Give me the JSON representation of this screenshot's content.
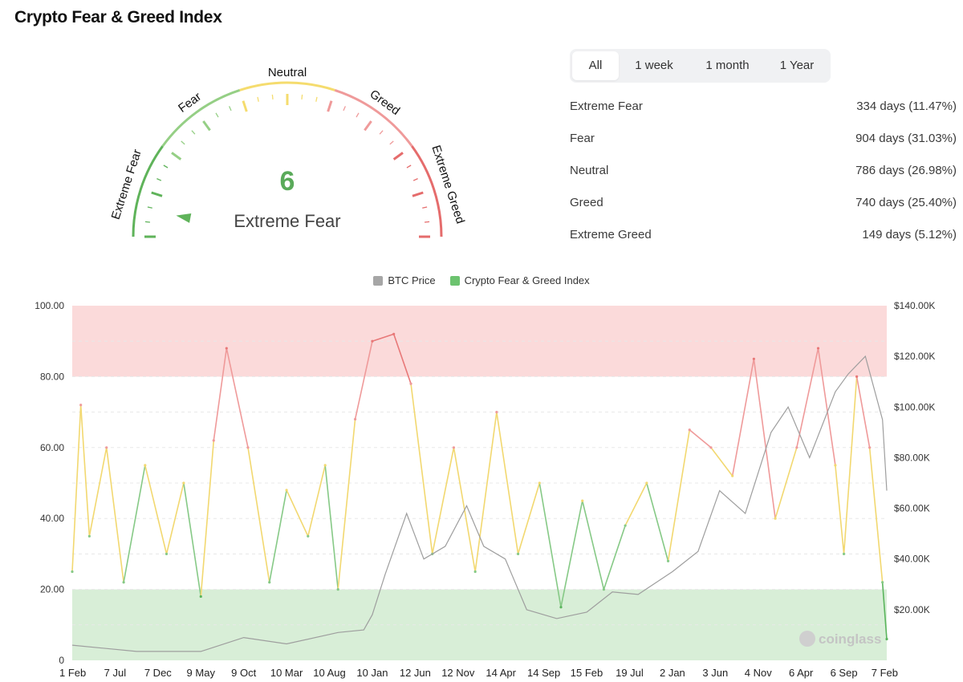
{
  "header": {
    "title": "Crypto Fear & Greed Index"
  },
  "gauge": {
    "value": 6,
    "value_text": "6",
    "label": "Extreme Fear",
    "min": 0,
    "max": 100,
    "zone_labels": [
      "Extreme Fear",
      "Fear",
      "Neutral",
      "Greed",
      "Extreme Greed"
    ],
    "zone_colors": [
      "#5fb35a",
      "#95cf85",
      "#f5dc6e",
      "#ef9a9a",
      "#e56c6c"
    ]
  },
  "tabs": [
    {
      "label": "All",
      "active": true
    },
    {
      "label": "1 week",
      "active": false
    },
    {
      "label": "1 month",
      "active": false
    },
    {
      "label": "1 Year",
      "active": false
    }
  ],
  "stats": [
    {
      "label": "Extreme Fear",
      "value": "334 days (11.47%)"
    },
    {
      "label": "Fear",
      "value": "904 days (31.03%)"
    },
    {
      "label": "Neutral",
      "value": "786 days (26.98%)"
    },
    {
      "label": "Greed",
      "value": "740 days (25.40%)"
    },
    {
      "label": "Extreme Greed",
      "value": "149 days (5.12%)"
    }
  ],
  "watermark": "coinglass",
  "chart_data": {
    "type": "line",
    "legend": [
      {
        "name": "BTC Price",
        "color": "#a6a6a6"
      },
      {
        "name": "Crypto Fear & Greed Index",
        "color": "#6cc36f"
      }
    ],
    "legend_position": "top-center",
    "x_ticks": [
      "1 Feb",
      "7 Jul",
      "7 Dec",
      "9 May",
      "9 Oct",
      "10 Mar",
      "10 Aug",
      "10 Jan",
      "12 Jun",
      "12 Nov",
      "14 Apr",
      "14 Sep",
      "15 Feb",
      "19 Jul",
      "2 Jan",
      "3 Jun",
      "4 Nov",
      "6 Apr",
      "6 Sep",
      "7 Feb"
    ],
    "y_left": {
      "ticks": [
        "0",
        "20.00",
        "40.00",
        "60.00",
        "80.00",
        "100.00"
      ],
      "range": [
        0,
        100
      ]
    },
    "y_right": {
      "ticks": [
        "$20.00K",
        "$40.00K",
        "$60.00K",
        "$80.00K",
        "$100.00K",
        "$120.00K",
        "$140.00K"
      ],
      "range": [
        0,
        140000
      ]
    },
    "bands": [
      {
        "from": 0,
        "to": 20,
        "color": "#d8eed7"
      },
      {
        "from": 80,
        "to": 100,
        "color": "#fbdada"
      }
    ],
    "line_colors": {
      "extreme_fear": "#5bb55d",
      "fear": "#86c986",
      "neutral": "#f2d870",
      "greed": "#ef9a9a",
      "extreme_greed": "#e87878"
    },
    "grid": true,
    "series": [
      {
        "name": "Crypto Fear & Greed Index",
        "x": [
          0,
          0.2,
          0.4,
          0.8,
          1.2,
          1.7,
          2.2,
          2.6,
          3.0,
          3.3,
          3.6,
          4.1,
          4.6,
          5.0,
          5.5,
          5.9,
          6.2,
          6.6,
          7.0,
          7.5,
          7.9,
          8.4,
          8.9,
          9.4,
          9.9,
          10.4,
          10.9,
          11.4,
          11.9,
          12.4,
          12.9,
          13.4,
          13.9,
          14.4,
          14.9,
          15.4,
          15.9,
          16.4,
          16.9,
          17.4,
          17.8,
          18.0,
          18.3,
          18.6,
          18.9,
          19.0
        ],
        "y": [
          25,
          72,
          35,
          60,
          22,
          55,
          30,
          50,
          18,
          62,
          88,
          60,
          22,
          48,
          35,
          55,
          20,
          68,
          90,
          92,
          78,
          30,
          60,
          25,
          70,
          30,
          50,
          15,
          45,
          20,
          38,
          50,
          28,
          65,
          60,
          52,
          85,
          40,
          60,
          88,
          55,
          30,
          80,
          60,
          22,
          6
        ]
      },
      {
        "name": "BTC Price",
        "x": [
          0,
          1.5,
          3.0,
          4.0,
          5.0,
          6.2,
          6.8,
          7.0,
          7.3,
          7.8,
          8.2,
          8.7,
          9.2,
          9.6,
          10.1,
          10.6,
          11.3,
          12.0,
          12.6,
          13.2,
          14.0,
          14.6,
          15.1,
          15.7,
          16.3,
          16.7,
          17.2,
          17.8,
          18.1,
          18.5,
          18.9,
          19.0
        ],
        "y": [
          6000,
          3500,
          3500,
          9000,
          6500,
          11000,
          12000,
          18000,
          34000,
          58000,
          40000,
          45000,
          61000,
          45000,
          40000,
          20000,
          16500,
          19000,
          27000,
          26000,
          35000,
          43000,
          67000,
          58000,
          90000,
          100000,
          80000,
          106000,
          113000,
          120000,
          95000,
          67000
        ]
      }
    ]
  }
}
